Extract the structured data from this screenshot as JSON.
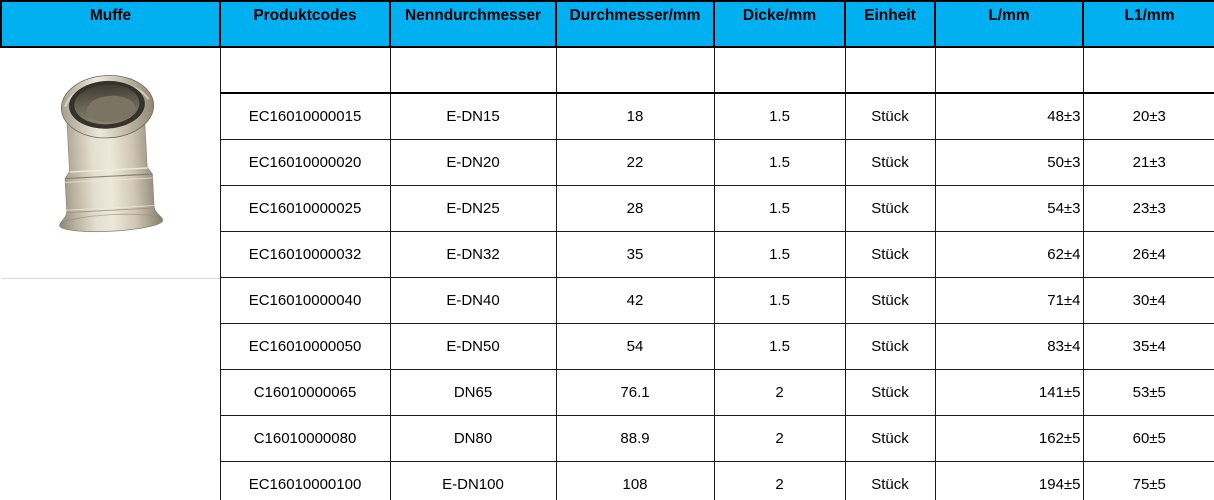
{
  "table": {
    "columns": [
      "Muffe",
      "Produktcodes",
      "Nenndurchmesser",
      "Durchmesser/mm",
      "Dicke/mm",
      "Einheit",
      "L/mm",
      "L1/mm"
    ],
    "rows": [
      [
        "EC16010000015",
        "E-DN15",
        "18",
        "1.5",
        "Stück",
        "48±3",
        "20±3"
      ],
      [
        "EC16010000020",
        "E-DN20",
        "22",
        "1.5",
        "Stück",
        "50±3",
        "21±3"
      ],
      [
        "EC16010000025",
        "E-DN25",
        "28",
        "1.5",
        "Stück",
        "54±3",
        "23±3"
      ],
      [
        "EC16010000032",
        "E-DN32",
        "35",
        "1.5",
        "Stück",
        "62±4",
        "26±4"
      ],
      [
        "EC16010000040",
        "E-DN40",
        "42",
        "1.5",
        "Stück",
        "71±4",
        "30±4"
      ],
      [
        "EC16010000050",
        "E-DN50",
        "54",
        "1.5",
        "Stück",
        "83±4",
        "35±4"
      ],
      [
        "C16010000065",
        "DN65",
        "76.1",
        "2",
        "Stück",
        "141±5",
        "53±5"
      ],
      [
        "C16010000080",
        "DN80",
        "88.9",
        "2",
        "Stück",
        "162±5",
        "60±5"
      ],
      [
        "EC16010000100",
        "E-DN100",
        "108",
        "2",
        "Stück",
        "194±5",
        "75±5"
      ]
    ]
  },
  "product_image": {
    "icon": "stainless-press-coupling-photo"
  },
  "colors": {
    "header_bg": "#00B0F0",
    "header_text": "#000000",
    "border": "#1b1b1b",
    "faint_divider": "#d8d8d8"
  }
}
